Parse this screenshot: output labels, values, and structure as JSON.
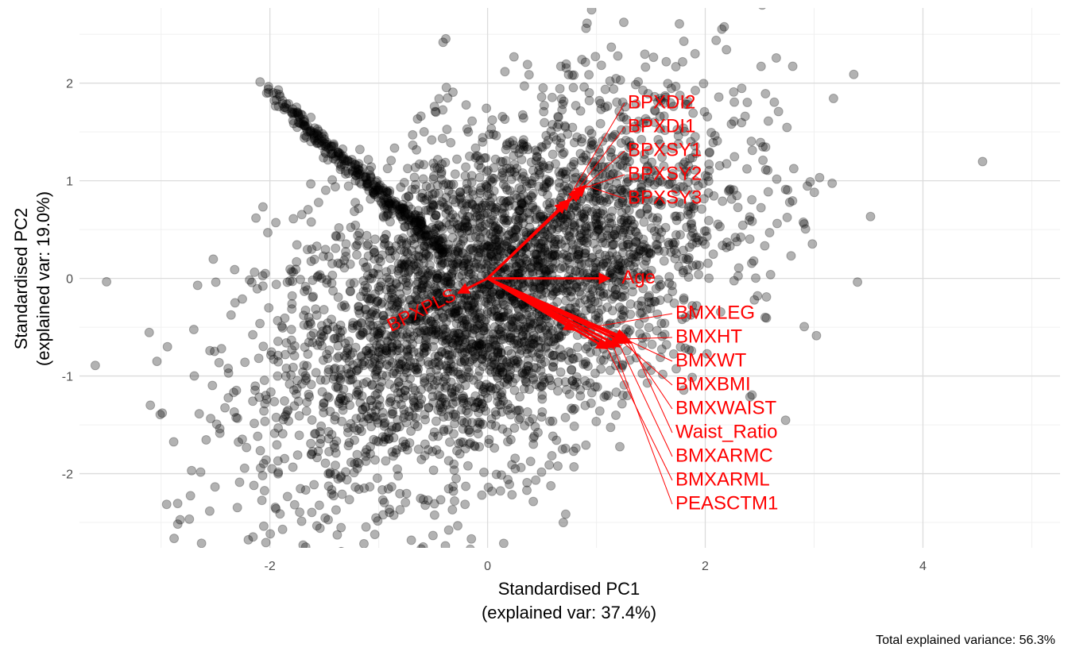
{
  "chart_data": {
    "type": "scatter",
    "subtype": "pca-biplot",
    "xlabel": "Standardised PC1",
    "xlabel_sub": "(explained var: 37.4%)",
    "ylabel": "Standardised PC2",
    "ylabel_sub": "(explained var: 19.0%)",
    "caption": "Total explained variance: 56.3%",
    "xlim": [
      -3.75,
      5.26
    ],
    "ylim": [
      -2.76,
      2.77
    ],
    "x_ticks": [
      "-2",
      "0",
      "2",
      "4"
    ],
    "x_tick_values": [
      -2,
      0,
      2,
      4
    ],
    "y_ticks": [
      "-2",
      "-1",
      "0",
      "1",
      "2"
    ],
    "y_tick_values": [
      -2,
      -1,
      0,
      1,
      2
    ],
    "grid": true,
    "legend": "none",
    "point_color": "#000000",
    "point_alpha": 0.3,
    "arrow_color": "#ff0000",
    "loadings": [
      {
        "name": "Age",
        "x": 1.12,
        "y": 0.0
      },
      {
        "name": "BPXPLS",
        "x": -0.27,
        "y": -0.15
      },
      {
        "name": "BPXDI2",
        "x": 0.72,
        "y": 0.78
      },
      {
        "name": "BPXDI1",
        "x": 0.76,
        "y": 0.81
      },
      {
        "name": "BPXSY1",
        "x": 0.85,
        "y": 0.9
      },
      {
        "name": "BPXSY2",
        "x": 0.87,
        "y": 0.92
      },
      {
        "name": "BPXSY3",
        "x": 0.9,
        "y": 0.95
      },
      {
        "name": "BMXLEG",
        "x": 0.8,
        "y": -0.53
      },
      {
        "name": "BMXHT",
        "x": 1.28,
        "y": -0.62
      },
      {
        "name": "BMXWT",
        "x": 1.3,
        "y": -0.64
      },
      {
        "name": "BMXBMI",
        "x": 1.25,
        "y": -0.66
      },
      {
        "name": "BMXWAIST",
        "x": 1.27,
        "y": -0.63
      },
      {
        "name": "Waist_Ratio",
        "x": 1.32,
        "y": -0.66
      },
      {
        "name": "BMXARMC",
        "x": 1.22,
        "y": -0.7
      },
      {
        "name": "BMXARML",
        "x": 1.1,
        "y": -0.72
      },
      {
        "name": "PEASCTM1",
        "x": 1.16,
        "y": -0.71
      }
    ]
  }
}
